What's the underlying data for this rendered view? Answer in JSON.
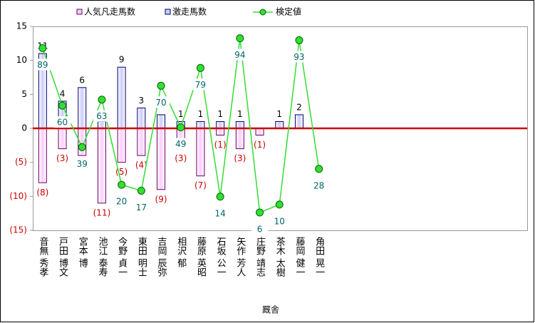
{
  "chart_data": {
    "type": "bar",
    "xlabel": "厩舎",
    "categories": [
      "音無 秀孝",
      "戸田 博文",
      "宮本 博",
      "池江 泰寿",
      "今野 貞一",
      "東田 明士",
      "吉岡 辰弥",
      "相沢 郁",
      "藤原 英昭",
      "石坂 公一",
      "矢作 芳人",
      "庄野 靖志",
      "茶木 太樹",
      "藤岡 健一",
      "角田 晃一"
    ],
    "series": [
      {
        "name": "人気凡走馬数",
        "type": "bar",
        "color": "#ffccff",
        "values": [
          -8,
          -3,
          -4,
          -11,
          -5,
          -4,
          -9,
          -3,
          -7,
          -1,
          -3,
          -1,
          null,
          null,
          null
        ],
        "value_labels": [
          "(8)",
          "(3)",
          "(4)",
          "(11)",
          "(5)",
          "(4)",
          "(9)",
          "(3)",
          "(7)",
          "(1)",
          "(3)",
          "(1)",
          null,
          null,
          null
        ]
      },
      {
        "name": "激走馬数",
        "type": "bar",
        "color": "#ccccff",
        "values": [
          11,
          4,
          6,
          1,
          9,
          3,
          2,
          1,
          1,
          1,
          1,
          null,
          1,
          2,
          null
        ],
        "value_labels": [
          "11",
          "4",
          "6",
          null,
          "9",
          "3",
          null,
          "1",
          "1",
          "1",
          "1",
          null,
          "1",
          "2",
          null
        ]
      },
      {
        "name": "検定値",
        "type": "line",
        "axis": "y2",
        "color": "#33dd33",
        "values": [
          89,
          60,
          39,
          63,
          20,
          17,
          70,
          49,
          79,
          14,
          94,
          6,
          10,
          93,
          28
        ]
      }
    ],
    "ylim": [
      -15,
      15
    ],
    "yticks": [
      {
        "value": -15,
        "label": "(15)"
      },
      {
        "value": -10,
        "label": "(10)"
      },
      {
        "value": -5,
        "label": "(5)"
      },
      0,
      5,
      10,
      15
    ],
    "y2lim": [
      -3,
      100
    ],
    "legend": "top"
  }
}
